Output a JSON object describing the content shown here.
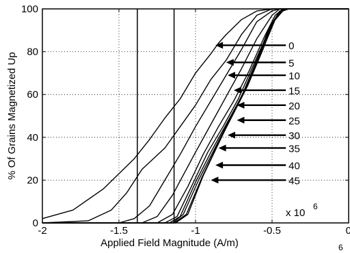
{
  "chart_data": {
    "type": "line",
    "xlabel": "Applied Field Magnitude (A/m)",
    "ylabel": "% Of Grains Magnetized Up",
    "xlim": [
      -2.0,
      0.0
    ],
    "ylim": [
      0,
      100
    ],
    "x_ticks": [
      "-2",
      "-1.5",
      "-1",
      "-0.5",
      "0"
    ],
    "y_ticks": [
      "0",
      "20",
      "40",
      "60",
      "80",
      "100"
    ],
    "x_scale_label": "x 10",
    "x_scale_exponent": "6",
    "grid": true,
    "grid_style": "dotted",
    "vertical_lines_x": [
      -1.38,
      -1.14
    ],
    "series": [
      {
        "label": "0",
        "points": [
          [
            -2.0,
            2
          ],
          [
            -1.8,
            6
          ],
          [
            -1.6,
            16
          ],
          [
            -1.5,
            23
          ],
          [
            -1.4,
            30
          ],
          [
            -1.3,
            39
          ],
          [
            -1.2,
            49
          ],
          [
            -1.1,
            58
          ],
          [
            -1.0,
            70
          ],
          [
            -0.9,
            79
          ],
          [
            -0.85,
            84
          ],
          [
            -0.8,
            88
          ],
          [
            -0.7,
            95
          ],
          [
            -0.6,
            99
          ],
          [
            -0.5,
            100
          ],
          [
            0.0,
            100
          ]
        ]
      },
      {
        "label": "5",
        "points": [
          [
            -2.0,
            0
          ],
          [
            -1.7,
            1
          ],
          [
            -1.55,
            6
          ],
          [
            -1.45,
            14
          ],
          [
            -1.35,
            25
          ],
          [
            -1.2,
            35
          ],
          [
            -1.1,
            45
          ],
          [
            -1.0,
            55
          ],
          [
            -0.9,
            67
          ],
          [
            -0.8,
            76
          ],
          [
            -0.7,
            88
          ],
          [
            -0.6,
            97
          ],
          [
            -0.5,
            100
          ],
          [
            0.0,
            100
          ]
        ]
      },
      {
        "label": "10",
        "points": [
          [
            -2.0,
            0
          ],
          [
            -1.5,
            0
          ],
          [
            -1.4,
            2
          ],
          [
            -1.3,
            8
          ],
          [
            -1.2,
            20
          ],
          [
            -1.1,
            32
          ],
          [
            -1.0,
            45
          ],
          [
            -0.9,
            57
          ],
          [
            -0.8,
            69
          ],
          [
            -0.7,
            81
          ],
          [
            -0.6,
            94
          ],
          [
            -0.5,
            99
          ],
          [
            -0.45,
            100
          ],
          [
            0.0,
            100
          ]
        ]
      },
      {
        "label": "15",
        "points": [
          [
            -2.0,
            0
          ],
          [
            -1.35,
            0
          ],
          [
            -1.25,
            3
          ],
          [
            -1.15,
            13
          ],
          [
            -1.0,
            33
          ],
          [
            -0.9,
            46
          ],
          [
            -0.8,
            59
          ],
          [
            -0.7,
            72
          ],
          [
            -0.6,
            86
          ],
          [
            -0.5,
            97
          ],
          [
            -0.45,
            100
          ],
          [
            0.0,
            100
          ]
        ]
      },
      {
        "label": "20",
        "points": [
          [
            -2.0,
            0
          ],
          [
            -1.25,
            0
          ],
          [
            -1.15,
            4
          ],
          [
            -1.05,
            17
          ],
          [
            -0.95,
            32
          ],
          [
            -0.85,
            45
          ],
          [
            -0.75,
            57
          ],
          [
            -0.65,
            71
          ],
          [
            -0.55,
            87
          ],
          [
            -0.48,
            97
          ],
          [
            -0.43,
            100
          ],
          [
            0.0,
            100
          ]
        ]
      },
      {
        "label": "25",
        "points": [
          [
            -2.0,
            0
          ],
          [
            -1.2,
            0
          ],
          [
            -1.12,
            3
          ],
          [
            -1.02,
            18
          ],
          [
            -0.92,
            33
          ],
          [
            -0.82,
            45
          ],
          [
            -0.72,
            58
          ],
          [
            -0.62,
            74
          ],
          [
            -0.52,
            90
          ],
          [
            -0.46,
            98
          ],
          [
            -0.42,
            100
          ],
          [
            0.0,
            100
          ]
        ]
      },
      {
        "label": "30",
        "points": [
          [
            -2.0,
            0
          ],
          [
            -1.17,
            0
          ],
          [
            -1.1,
            3
          ],
          [
            -1.0,
            19
          ],
          [
            -0.9,
            33
          ],
          [
            -0.8,
            46
          ],
          [
            -0.7,
            59
          ],
          [
            -0.6,
            76
          ],
          [
            -0.52,
            91
          ],
          [
            -0.45,
            99
          ],
          [
            -0.41,
            100
          ],
          [
            0.0,
            100
          ]
        ]
      },
      {
        "label": "35",
        "points": [
          [
            -2.0,
            0
          ],
          [
            -1.15,
            0
          ],
          [
            -1.08,
            4
          ],
          [
            -0.98,
            20
          ],
          [
            -0.88,
            34
          ],
          [
            -0.78,
            48
          ],
          [
            -0.68,
            62
          ],
          [
            -0.58,
            79
          ],
          [
            -0.5,
            93
          ],
          [
            -0.44,
            99
          ],
          [
            -0.4,
            100
          ],
          [
            0.0,
            100
          ]
        ]
      },
      {
        "label": "40",
        "points": [
          [
            -2.0,
            0
          ],
          [
            -1.14,
            0
          ],
          [
            -1.06,
            4
          ],
          [
            -0.96,
            21
          ],
          [
            -0.86,
            36
          ],
          [
            -0.76,
            50
          ],
          [
            -0.66,
            64
          ],
          [
            -0.56,
            81
          ],
          [
            -0.49,
            94
          ],
          [
            -0.43,
            99
          ],
          [
            -0.39,
            100
          ],
          [
            0.0,
            100
          ]
        ]
      },
      {
        "label": "45",
        "points": [
          [
            -2.0,
            0
          ],
          [
            -1.13,
            0
          ],
          [
            -1.05,
            4
          ],
          [
            -0.95,
            22
          ],
          [
            -0.85,
            37
          ],
          [
            -0.75,
            52
          ],
          [
            -0.65,
            66
          ],
          [
            -0.55,
            83
          ],
          [
            -0.48,
            95
          ],
          [
            -0.42,
            100
          ],
          [
            -0.38,
            100
          ],
          [
            0.0,
            100
          ]
        ]
      }
    ],
    "annotations": [
      {
        "text": "0",
        "y": 83,
        "arrow_x_from": -0.41,
        "arrow_x_to": -0.87
      },
      {
        "text": "5",
        "y": 75,
        "arrow_x_from": -0.41,
        "arrow_x_to": -0.8
      },
      {
        "text": "10",
        "y": 69,
        "arrow_x_from": -0.41,
        "arrow_x_to": -0.79
      },
      {
        "text": "15",
        "y": 62,
        "arrow_x_from": -0.41,
        "arrow_x_to": -0.75
      },
      {
        "text": "20",
        "y": 55,
        "arrow_x_from": -0.41,
        "arrow_x_to": -0.73
      },
      {
        "text": "25",
        "y": 48,
        "arrow_x_from": -0.41,
        "arrow_x_to": -0.73
      },
      {
        "text": "30",
        "y": 41,
        "arrow_x_from": -0.41,
        "arrow_x_to": -0.79
      },
      {
        "text": "35",
        "y": 35,
        "arrow_x_from": -0.41,
        "arrow_x_to": -0.85
      },
      {
        "text": "40",
        "y": 27,
        "arrow_x_from": -0.41,
        "arrow_x_to": -0.87
      },
      {
        "text": "45",
        "y": 20,
        "arrow_x_from": -0.41,
        "arrow_x_to": -0.9
      }
    ]
  }
}
